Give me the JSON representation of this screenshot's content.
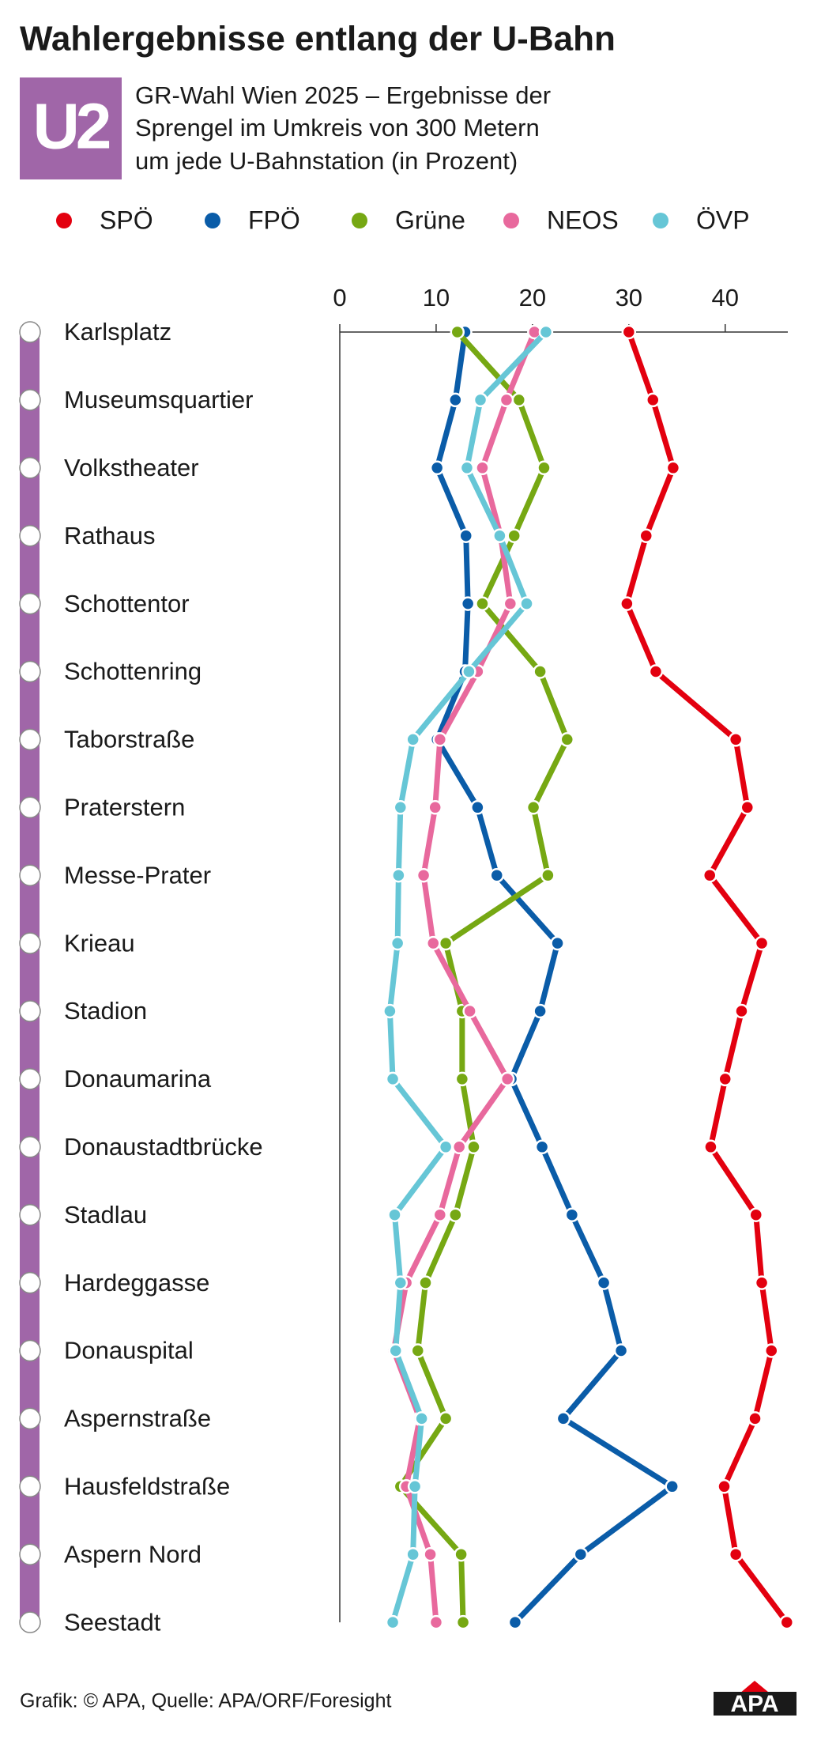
{
  "chart_data": {
    "type": "line",
    "orientation": "horizontal",
    "title": "Wahlergebnisse entlang der U-Bahn",
    "logo": "U2",
    "subtitle": [
      "GR-Wahl Wien 2025 – Ergebnisse der",
      "Sprengel im Umkreis von 300 Metern",
      "um jede U-Bahnstation (in Prozent)"
    ],
    "categories": [
      "Karlsplatz",
      "Museumsquartier",
      "Volkstheater",
      "Rathaus",
      "Schottentor",
      "Schottenring",
      "Taborstraße",
      "Praterstern",
      "Messe-Prater",
      "Krieau",
      "Stadion",
      "Donaumarina",
      "Donaustadtbrücke",
      "Stadlau",
      "Hardeggasse",
      "Donauspital",
      "Aspernstraße",
      "Hausfeldstraße",
      "Aspern Nord",
      "Seestadt"
    ],
    "series": [
      {
        "name": "SPÖ",
        "color": "#e3000f",
        "values": [
          30.0,
          32.5,
          34.6,
          31.8,
          29.8,
          32.8,
          41.1,
          42.3,
          38.4,
          43.8,
          41.7,
          40.0,
          38.5,
          43.2,
          43.8,
          44.8,
          43.1,
          39.9,
          41.1,
          46.4
        ]
      },
      {
        "name": "FPÖ",
        "color": "#0a5ca8",
        "values": [
          13.0,
          12.0,
          10.1,
          13.1,
          13.3,
          13.0,
          10.1,
          14.3,
          16.3,
          22.6,
          20.8,
          17.8,
          21.0,
          24.1,
          27.4,
          29.2,
          23.2,
          34.5,
          25.0,
          18.2
        ]
      },
      {
        "name": "Grüne",
        "color": "#76a813",
        "values": [
          12.2,
          18.6,
          21.2,
          18.1,
          14.8,
          20.8,
          23.6,
          20.1,
          21.6,
          11.0,
          12.7,
          12.7,
          13.9,
          12.0,
          8.9,
          8.1,
          11.0,
          6.3,
          12.6,
          12.8
        ]
      },
      {
        "name": "NEOS",
        "color": "#e8699d",
        "values": [
          20.2,
          17.3,
          14.8,
          16.7,
          17.7,
          14.3,
          10.4,
          9.9,
          8.7,
          9.7,
          13.5,
          17.4,
          12.4,
          10.4,
          6.9,
          5.6,
          8.3,
          6.9,
          9.4,
          10.0
        ]
      },
      {
        "name": "ÖVP",
        "color": "#66c6d6",
        "values": [
          21.4,
          14.6,
          13.2,
          16.6,
          19.4,
          13.4,
          7.6,
          6.3,
          6.1,
          6.0,
          5.2,
          5.5,
          11.0,
          5.7,
          6.3,
          5.8,
          8.5,
          7.8,
          7.6,
          5.5
        ]
      }
    ],
    "xlim": [
      0,
      46.5
    ],
    "xticks": [
      0,
      10,
      20,
      30,
      40
    ],
    "line_color": "#a066a8",
    "source": "Grafik: © APA, Quelle: APA/ORF/Foresight",
    "brand": "APA"
  }
}
